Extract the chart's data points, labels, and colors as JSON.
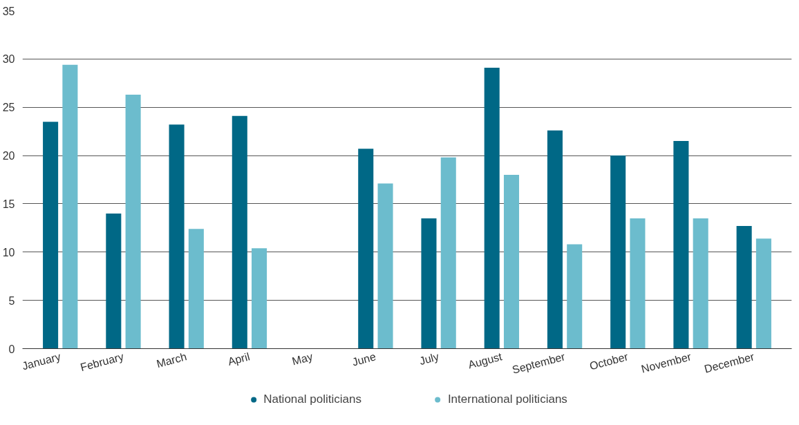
{
  "chart_data": {
    "type": "bar",
    "categories": [
      "January",
      "February",
      "March",
      "April",
      "May",
      "June",
      "July",
      "August",
      "September",
      "October",
      "November",
      "December"
    ],
    "series": [
      {
        "name": "National politicians",
        "color": "#006886",
        "values": [
          23.5,
          14.0,
          23.2,
          24.1,
          null,
          20.7,
          13.5,
          29.1,
          22.6,
          20.0,
          21.5,
          12.7
        ]
      },
      {
        "name": "International politicians",
        "color": "#6cbccd",
        "values": [
          29.4,
          26.3,
          12.4,
          10.4,
          null,
          17.1,
          19.8,
          18.0,
          10.8,
          13.5,
          13.5,
          11.4
        ]
      }
    ],
    "ylim": [
      0,
      35
    ],
    "yticks": [
      0,
      5,
      10,
      15,
      20,
      25,
      30,
      35
    ],
    "grid": "y",
    "legend": "bottom"
  }
}
